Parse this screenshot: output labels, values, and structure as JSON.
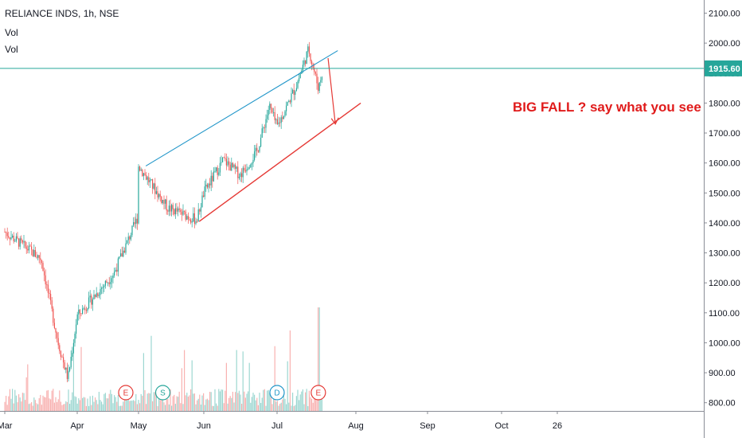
{
  "header": {
    "symbol": "RELIANCE INDS, 1h, NSE",
    "vol1": "Vol",
    "vol2": "Vol"
  },
  "colors": {
    "up": "#26a69a",
    "down": "#ef5350",
    "trend_upper": "#2196c9",
    "trend_lower": "#e53935",
    "price_line": "#26a69a",
    "annotation": "#e01b1b"
  },
  "chart_data": {
    "type": "candlestick",
    "title": "RELIANCE INDS, 1h, NSE",
    "ylim": [
      745,
      2120
    ],
    "y_ticks": [
      "800.00",
      "900.00",
      "1000.00",
      "1100.00",
      "1200.00",
      "1300.00",
      "1400.00",
      "1500.00",
      "1600.00",
      "1700.00",
      "1800.00",
      "1900.00",
      "2000.00",
      "2100.00"
    ],
    "x_ticks": [
      "Mar",
      "Apr",
      "May",
      "Jun",
      "Jul",
      "Aug",
      "Sep",
      "Oct",
      "26"
    ],
    "last_price": "1915.60",
    "last_price_value": 1915.6,
    "annotation": "BIG FALL ? say what you see",
    "price_path_key": [
      [
        "Mar",
        1370
      ],
      [
        "Mar+15d",
        1280
      ],
      [
        "Mar+22d",
        1000
      ],
      [
        "Mar+26d",
        880
      ],
      [
        "Apr",
        1090
      ],
      [
        "Apr+15d",
        1230
      ],
      [
        "Apr+25d",
        1420
      ],
      [
        "May",
        1590
      ],
      [
        "May+12d",
        1450
      ],
      [
        "May+24d",
        1410
      ],
      [
        "Jun",
        1500
      ],
      [
        "Jun+8d",
        1610
      ],
      [
        "Jun+15d",
        1560
      ],
      [
        "Jun+22d",
        1640
      ],
      [
        "Jun+27d",
        1790
      ],
      [
        "Jul",
        1720
      ],
      [
        "Jul+8d",
        1860
      ],
      [
        "Jul+13d",
        1980
      ],
      [
        "Jul+17d",
        1850
      ],
      [
        "Jul+19d",
        1915.6
      ]
    ],
    "trendlines": {
      "upper": [
        [
          "May+3d",
          1590
        ],
        [
          "Jul+25d",
          1975
        ]
      ],
      "lower": [
        [
          "May+25d",
          1405
        ],
        [
          "Aug+2d",
          1800
        ]
      ]
    },
    "projection_arrow": [
      [
        "Jul+21d",
        1950
      ],
      [
        "Jul+24d",
        1730
      ]
    ],
    "events": [
      {
        "label": "E",
        "date": "Apr+20d",
        "type": "earnings"
      },
      {
        "label": "S",
        "date": "May+10d",
        "type": "split"
      },
      {
        "label": "D",
        "date": "Jul",
        "type": "dividend"
      },
      {
        "label": "E",
        "date": "Jul+17d",
        "type": "earnings"
      }
    ]
  }
}
